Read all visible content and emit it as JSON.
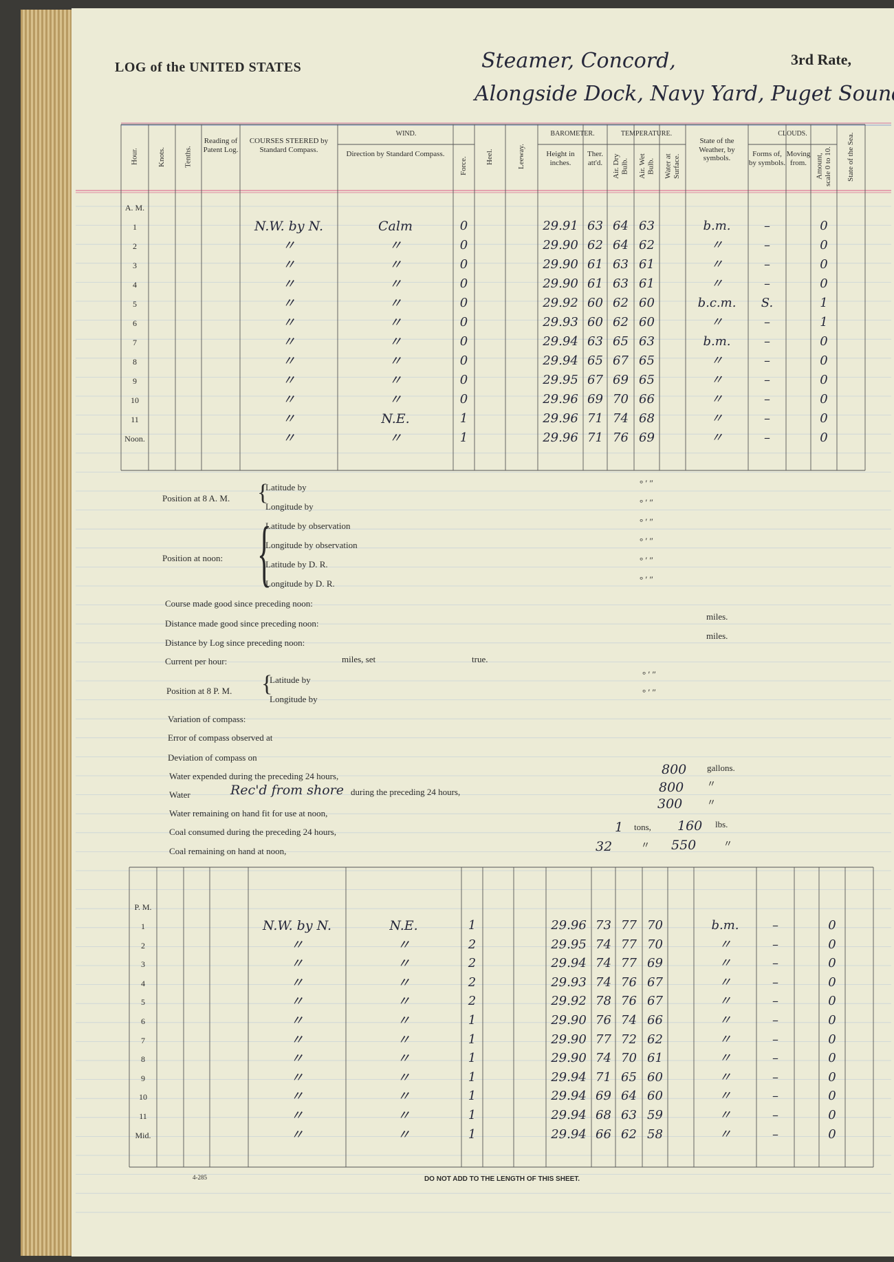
{
  "header": {
    "title": "LOG of the UNITED STATES",
    "vessel": "Steamer, Concord,",
    "rate": "3rd Rate,",
    "location": "Alongside Dock, Navy Yard, Puget Sound."
  },
  "columns": {
    "hour": "Hour.",
    "knots": "Knots.",
    "tenths": "Tenths.",
    "log": "Reading of Patent Log.",
    "course": "COURSES STEERED by Standard Compass.",
    "wind": "WIND.",
    "direction": "Direction by Standard Compass.",
    "force": "Force.",
    "heel": "Heel.",
    "leeway": "Leeway.",
    "barometer": "BAROMETER.",
    "height": "Height in inches.",
    "ther": "Ther. att'd.",
    "temperature": "TEMPERATURE.",
    "dry": "Air. Dry Bulb.",
    "wet": "Air. Wet Bulb.",
    "water": "Water at Surface.",
    "weather": "State of the Weather, by symbols.",
    "clouds": "CLOUDS.",
    "forms": "Forms of, by symbols.",
    "moving": "Moving from.",
    "amount": "Amount, scale 0 to 10.",
    "sea": "State of the Sea."
  },
  "am": {
    "label": "A. M.",
    "rows": [
      {
        "hour": "1",
        "course": "N.W. by N.",
        "direction": "Calm",
        "force": "0",
        "height": "29.91",
        "ther": "63",
        "dry": "64",
        "wet": "63",
        "weather": "b.m.",
        "forms": "–",
        "amount": "0"
      },
      {
        "hour": "2",
        "course": "〃",
        "direction": "〃",
        "force": "0",
        "height": "29.90",
        "ther": "62",
        "dry": "64",
        "wet": "62",
        "weather": "〃",
        "forms": "–",
        "amount": "0"
      },
      {
        "hour": "3",
        "course": "〃",
        "direction": "〃",
        "force": "0",
        "height": "29.90",
        "ther": "61",
        "dry": "63",
        "wet": "61",
        "weather": "〃",
        "forms": "–",
        "amount": "0"
      },
      {
        "hour": "4",
        "course": "〃",
        "direction": "〃",
        "force": "0",
        "height": "29.90",
        "ther": "61",
        "dry": "63",
        "wet": "61",
        "weather": "〃",
        "forms": "–",
        "amount": "0"
      },
      {
        "hour": "5",
        "course": "〃",
        "direction": "〃",
        "force": "0",
        "height": "29.92",
        "ther": "60",
        "dry": "62",
        "wet": "60",
        "weather": "b.c.m.",
        "forms": "S.",
        "amount": "1"
      },
      {
        "hour": "6",
        "course": "〃",
        "direction": "〃",
        "force": "0",
        "height": "29.93",
        "ther": "60",
        "dry": "62",
        "wet": "60",
        "weather": "〃",
        "forms": "–",
        "amount": "1"
      },
      {
        "hour": "7",
        "course": "〃",
        "direction": "〃",
        "force": "0",
        "height": "29.94",
        "ther": "63",
        "dry": "65",
        "wet": "63",
        "weather": "b.m.",
        "forms": "–",
        "amount": "0"
      },
      {
        "hour": "8",
        "course": "〃",
        "direction": "〃",
        "force": "0",
        "height": "29.94",
        "ther": "65",
        "dry": "67",
        "wet": "65",
        "weather": "〃",
        "forms": "–",
        "amount": "0"
      },
      {
        "hour": "9",
        "course": "〃",
        "direction": "〃",
        "force": "0",
        "height": "29.95",
        "ther": "67",
        "dry": "69",
        "wet": "65",
        "weather": "〃",
        "forms": "–",
        "amount": "0"
      },
      {
        "hour": "10",
        "course": "〃",
        "direction": "〃",
        "force": "0",
        "height": "29.96",
        "ther": "69",
        "dry": "70",
        "wet": "66",
        "weather": "〃",
        "forms": "–",
        "amount": "0"
      },
      {
        "hour": "11",
        "course": "〃",
        "direction": "N.E.",
        "force": "1",
        "height": "29.96",
        "ther": "71",
        "dry": "74",
        "wet": "68",
        "weather": "〃",
        "forms": "–",
        "amount": "0"
      },
      {
        "hour": "Noon.",
        "course": "〃",
        "direction": "〃",
        "force": "1",
        "height": "29.96",
        "ther": "71",
        "dry": "76",
        "wet": "69",
        "weather": "〃",
        "forms": "–",
        "amount": "0"
      }
    ]
  },
  "positions": {
    "coordinate_marks": "°   ′   ″",
    "at_8am": {
      "label": "Position at 8 A. M.",
      "lines": [
        "Latitude by",
        "Longitude by"
      ]
    },
    "at_noon": {
      "label": "Position at noon:",
      "lines": [
        "Latitude by observation",
        "Longitude by observation",
        "Latitude by D. R.",
        "Longitude by D. R."
      ]
    },
    "at_8pm": {
      "label": "Position at 8 P. M.",
      "lines": [
        "Latitude by",
        "Longitude by"
      ]
    }
  },
  "fields": {
    "course_made_good": "Course made good since preceding noon:",
    "distance_made_good": "Distance made good since preceding noon:",
    "distance_by_log": "Distance by Log since preceding noon:",
    "miles": "miles.",
    "current": "Current per hour:",
    "current_set": "miles, set",
    "current_true": "true.",
    "variation": "Variation of compass:",
    "error": "Error of compass observed at",
    "deviation": "Deviation of compass on",
    "water_expended": {
      "label": "Water expended during the preceding 24 hours,",
      "value": "800",
      "unit": "gallons."
    },
    "water_received": {
      "label": "Water",
      "source": "Rec'd from shore",
      "rest": "during the preceding 24 hours,",
      "value": "800",
      "unit": "〃"
    },
    "water_remaining": {
      "label": "Water remaining on hand fit for use at noon,",
      "value": "300",
      "unit": "〃"
    },
    "coal_consumed": {
      "label": "Coal consumed during the preceding 24 hours,",
      "tons": "1",
      "tons_unit": "tons,",
      "lbs": "160",
      "lbs_unit": "lbs."
    },
    "coal_remaining": {
      "label": "Coal remaining on hand at noon,",
      "tons": "32",
      "tons_unit": "〃",
      "lbs": "550",
      "lbs_unit": "〃"
    }
  },
  "pm": {
    "label": "P. M.",
    "rows": [
      {
        "hour": "1",
        "course": "N.W. by N.",
        "direction": "N.E.",
        "force": "1",
        "height": "29.96",
        "ther": "73",
        "dry": "77",
        "wet": "70",
        "weather": "b.m.",
        "forms": "–",
        "amount": "0"
      },
      {
        "hour": "2",
        "course": "〃",
        "direction": "〃",
        "force": "2",
        "height": "29.95",
        "ther": "74",
        "dry": "77",
        "wet": "70",
        "weather": "〃",
        "forms": "–",
        "amount": "0"
      },
      {
        "hour": "3",
        "course": "〃",
        "direction": "〃",
        "force": "2",
        "height": "29.94",
        "ther": "74",
        "dry": "77",
        "wet": "69",
        "weather": "〃",
        "forms": "–",
        "amount": "0"
      },
      {
        "hour": "4",
        "course": "〃",
        "direction": "〃",
        "force": "2",
        "height": "29.93",
        "ther": "74",
        "dry": "76",
        "wet": "67",
        "weather": "〃",
        "forms": "–",
        "amount": "0"
      },
      {
        "hour": "5",
        "course": "〃",
        "direction": "〃",
        "force": "2",
        "height": "29.92",
        "ther": "78",
        "dry": "76",
        "wet": "67",
        "weather": "〃",
        "forms": "–",
        "amount": "0"
      },
      {
        "hour": "6",
        "course": "〃",
        "direction": "〃",
        "force": "1",
        "height": "29.90",
        "ther": "76",
        "dry": "74",
        "wet": "66",
        "weather": "〃",
        "forms": "–",
        "amount": "0"
      },
      {
        "hour": "7",
        "course": "〃",
        "direction": "〃",
        "force": "1",
        "height": "29.90",
        "ther": "77",
        "dry": "72",
        "wet": "62",
        "weather": "〃",
        "forms": "–",
        "amount": "0"
      },
      {
        "hour": "8",
        "course": "〃",
        "direction": "〃",
        "force": "1",
        "height": "29.90",
        "ther": "74",
        "dry": "70",
        "wet": "61",
        "weather": "〃",
        "forms": "–",
        "amount": "0"
      },
      {
        "hour": "9",
        "course": "〃",
        "direction": "〃",
        "force": "1",
        "height": "29.94",
        "ther": "71",
        "dry": "65",
        "wet": "60",
        "weather": "〃",
        "forms": "–",
        "amount": "0"
      },
      {
        "hour": "10",
        "course": "〃",
        "direction": "〃",
        "force": "1",
        "height": "29.94",
        "ther": "69",
        "dry": "64",
        "wet": "60",
        "weather": "〃",
        "forms": "–",
        "amount": "0"
      },
      {
        "hour": "11",
        "course": "〃",
        "direction": "〃",
        "force": "1",
        "height": "29.94",
        "ther": "68",
        "dry": "63",
        "wet": "59",
        "weather": "〃",
        "forms": "–",
        "amount": "0"
      },
      {
        "hour": "Mid.",
        "course": "〃",
        "direction": "〃",
        "force": "1",
        "height": "29.94",
        "ther": "66",
        "dry": "62",
        "wet": "58",
        "weather": "〃",
        "forms": "–",
        "amount": "0"
      }
    ]
  },
  "footer": {
    "form": "4-285",
    "notice": "DO NOT ADD TO THE LENGTH OF THIS SHEET."
  }
}
